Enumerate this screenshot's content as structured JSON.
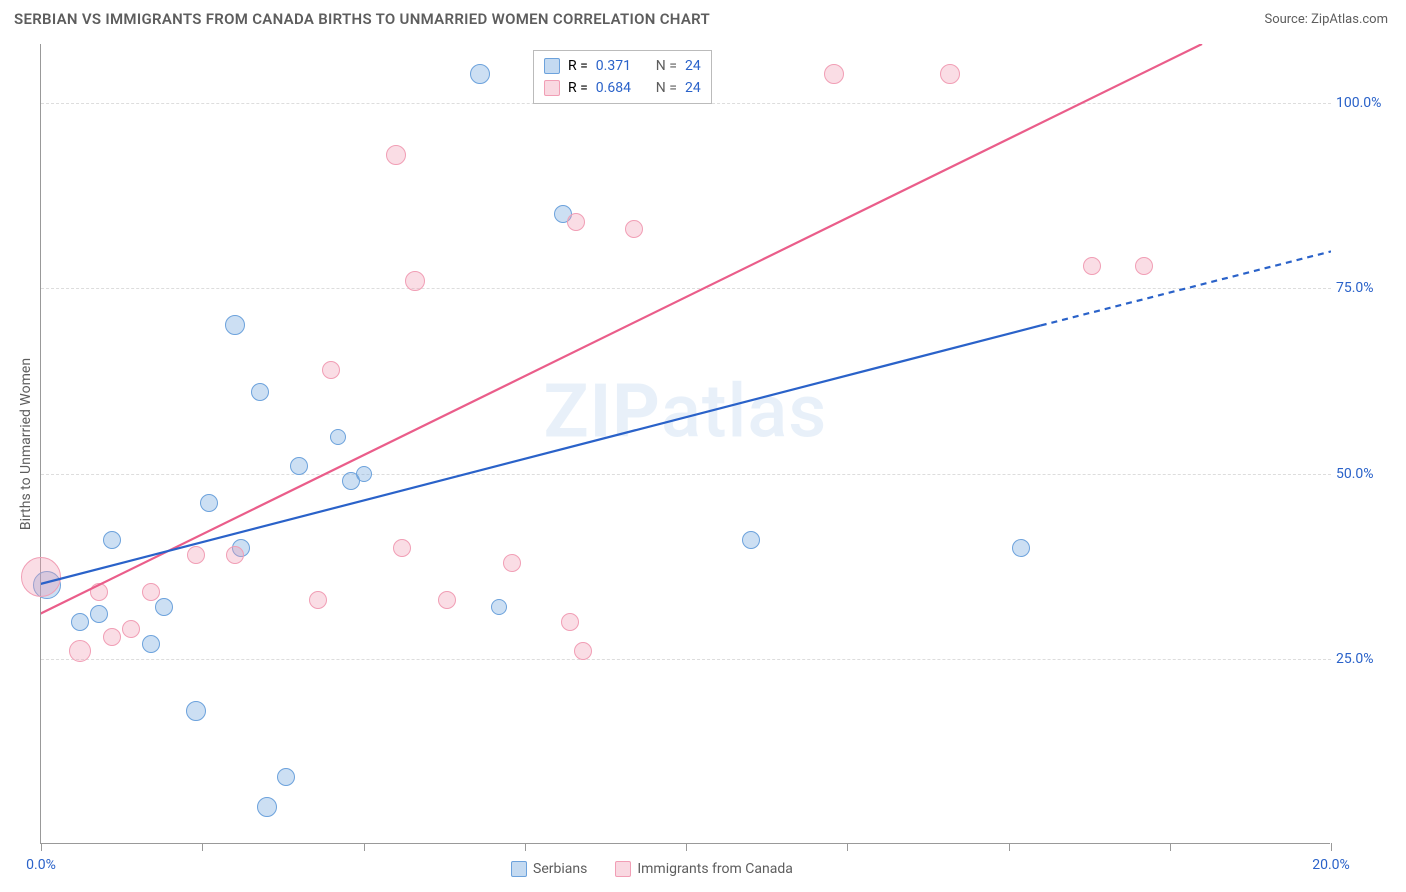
{
  "title": "SERBIAN VS IMMIGRANTS FROM CANADA BIRTHS TO UNMARRIED WOMEN CORRELATION CHART",
  "source": "Source: ZipAtlas.com",
  "watermark_bold": "ZIP",
  "watermark_light": "atlas",
  "ylabel": "Births to Unmarried Women",
  "chart": {
    "type": "scatter",
    "xlim": [
      0,
      20
    ],
    "ylim": [
      0,
      108
    ],
    "x_ticks": [
      0,
      2.5,
      5,
      7.5,
      10,
      12.5,
      15,
      17.5,
      20
    ],
    "x_tick_labels": {
      "0": "0.0%",
      "20": "20.0%"
    },
    "y_gridlines": [
      25,
      50,
      75,
      100
    ],
    "y_tick_labels": {
      "25": "25.0%",
      "50": "50.0%",
      "75": "75.0%",
      "100": "100.0%"
    },
    "background_color": "#ffffff",
    "grid_color": "#dddddd",
    "axis_color": "#999999",
    "tick_label_color": "#2a62c9",
    "series": [
      {
        "name": "Serbians",
        "color_fill": "rgba(108,162,220,0.35)",
        "color_stroke": "#6ca2dc",
        "trend_color": "#2a62c9",
        "r": "0.371",
        "n": "24",
        "trend": {
          "x1": -0.5,
          "y1": 34,
          "x2": 15.5,
          "y2": 70,
          "dash_from_x": 15.5,
          "x2d": 20,
          "y2d": 80
        },
        "points": [
          {
            "x": 0.1,
            "y": 35,
            "r": 14
          },
          {
            "x": 0.6,
            "y": 30,
            "r": 9
          },
          {
            "x": 0.9,
            "y": 31,
            "r": 9
          },
          {
            "x": 1.1,
            "y": 41,
            "r": 9
          },
          {
            "x": 1.7,
            "y": 27,
            "r": 9
          },
          {
            "x": 1.9,
            "y": 32,
            "r": 9
          },
          {
            "x": 2.4,
            "y": 18,
            "r": 10
          },
          {
            "x": 2.6,
            "y": 46,
            "r": 9
          },
          {
            "x": 3.0,
            "y": 70,
            "r": 10
          },
          {
            "x": 3.1,
            "y": 40,
            "r": 9
          },
          {
            "x": 3.4,
            "y": 61,
            "r": 9
          },
          {
            "x": 3.5,
            "y": 5,
            "r": 10
          },
          {
            "x": 3.8,
            "y": 9,
            "r": 9
          },
          {
            "x": 4.0,
            "y": 51,
            "r": 9
          },
          {
            "x": 4.6,
            "y": 55,
            "r": 8
          },
          {
            "x": 4.8,
            "y": 49,
            "r": 9
          },
          {
            "x": 5.0,
            "y": 50,
            "r": 8
          },
          {
            "x": 6.8,
            "y": 104,
            "r": 10
          },
          {
            "x": 7.1,
            "y": 32,
            "r": 8
          },
          {
            "x": 8.1,
            "y": 85,
            "r": 9
          },
          {
            "x": 11.0,
            "y": 41,
            "r": 9
          },
          {
            "x": 15.2,
            "y": 40,
            "r": 9
          }
        ]
      },
      {
        "name": "Immigrants from Canada",
        "color_fill": "rgba(241,158,181,0.35)",
        "color_stroke": "#f19eb5",
        "trend_color": "#ea5d8a",
        "r": "0.684",
        "n": "24",
        "trend": {
          "x1": -0.5,
          "y1": 29,
          "x2": 18,
          "y2": 108
        },
        "points": [
          {
            "x": 0.0,
            "y": 36,
            "r": 20
          },
          {
            "x": 0.6,
            "y": 26,
            "r": 11
          },
          {
            "x": 0.9,
            "y": 34,
            "r": 9
          },
          {
            "x": 1.1,
            "y": 28,
            "r": 9
          },
          {
            "x": 1.4,
            "y": 29,
            "r": 9
          },
          {
            "x": 1.7,
            "y": 34,
            "r": 9
          },
          {
            "x": 2.4,
            "y": 39,
            "r": 9
          },
          {
            "x": 3.0,
            "y": 39,
            "r": 9
          },
          {
            "x": 4.3,
            "y": 33,
            "r": 9
          },
          {
            "x": 4.5,
            "y": 64,
            "r": 9
          },
          {
            "x": 5.5,
            "y": 93,
            "r": 10
          },
          {
            "x": 5.6,
            "y": 40,
            "r": 9
          },
          {
            "x": 5.8,
            "y": 76,
            "r": 10
          },
          {
            "x": 6.3,
            "y": 33,
            "r": 9
          },
          {
            "x": 7.3,
            "y": 38,
            "r": 9
          },
          {
            "x": 8.2,
            "y": 30,
            "r": 9
          },
          {
            "x": 8.3,
            "y": 84,
            "r": 9
          },
          {
            "x": 8.4,
            "y": 26,
            "r": 9
          },
          {
            "x": 9.2,
            "y": 83,
            "r": 9
          },
          {
            "x": 12.3,
            "y": 104,
            "r": 10
          },
          {
            "x": 14.1,
            "y": 104,
            "r": 10
          },
          {
            "x": 16.3,
            "y": 78,
            "r": 9
          },
          {
            "x": 17.1,
            "y": 78,
            "r": 9
          }
        ]
      }
    ]
  },
  "legend_top": {
    "r_label": "R =",
    "n_label": "N ="
  },
  "legend_bottom": [
    {
      "swatch": "blue",
      "label": "Serbians"
    },
    {
      "swatch": "pink",
      "label": "Immigrants from Canada"
    }
  ]
}
